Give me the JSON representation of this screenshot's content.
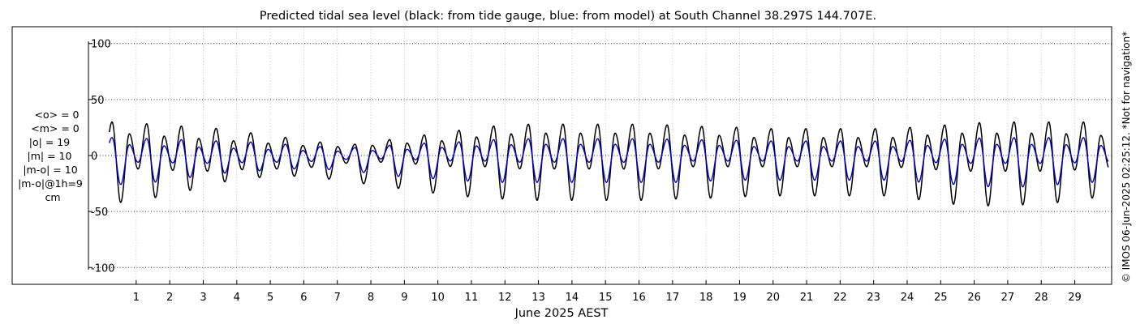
{
  "chart_data": {
    "type": "line",
    "title": "Predicted tidal sea level (black: from tide gauge, blue: from model) at South Channel 38.297S 144.707E.",
    "xlabel": "June 2025 AEST",
    "ylabel": "",
    "xlim": [
      -2.7,
      30.1
    ],
    "ylim": [
      -115,
      115
    ],
    "x_ticks": [
      1,
      2,
      3,
      4,
      5,
      6,
      7,
      8,
      9,
      10,
      11,
      12,
      13,
      14,
      15,
      16,
      17,
      18,
      19,
      20,
      21,
      22,
      23,
      24,
      25,
      26,
      27,
      28,
      29
    ],
    "y_ticks": [
      {
        "value": 100,
        "label": "100"
      },
      {
        "value": 50,
        "label": "50"
      },
      {
        "value": 0,
        "label": "0"
      },
      {
        "value": -50,
        "label": "-50"
      },
      {
        "value": -100,
        "label": "-100"
      }
    ],
    "grid": true,
    "data_start_x": 0.2,
    "data_end_x": 30.0,
    "series": [
      {
        "name": "from tide gauge",
        "color": "#000000",
        "daily_min": [
          -42,
          -38,
          -32,
          -24,
          -20,
          -18,
          -20,
          -24,
          -28,
          -32,
          -36,
          -38,
          -40,
          -40,
          -40,
          -40,
          -40,
          -38,
          -38,
          -36,
          -36,
          -36,
          -36,
          -36,
          -40,
          -44,
          -45,
          -44,
          -42,
          -38
        ],
        "daily_max": [
          30,
          28,
          26,
          24,
          20,
          16,
          12,
          10,
          14,
          18,
          22,
          26,
          28,
          28,
          28,
          28,
          28,
          26,
          26,
          24,
          24,
          24,
          24,
          24,
          26,
          28,
          30,
          30,
          30,
          30
        ],
        "daily_second_max": [
          20,
          18,
          16,
          14,
          12,
          10,
          8,
          8,
          10,
          12,
          14,
          18,
          20,
          20,
          20,
          20,
          20,
          18,
          18,
          16,
          16,
          16,
          16,
          16,
          18,
          20,
          20,
          20,
          20,
          18
        ],
        "daily_second_min": [
          -12,
          -12,
          -14,
          -14,
          -12,
          -12,
          -10,
          -6,
          -6,
          -8,
          -10,
          -10,
          -12,
          -12,
          -12,
          -12,
          -12,
          -10,
          -10,
          -10,
          -10,
          -10,
          -10,
          -10,
          -12,
          -14,
          -14,
          -14,
          -14,
          -12
        ]
      },
      {
        "name": "from model",
        "color": "#0000cc",
        "daily_min": [
          -26,
          -24,
          -20,
          -16,
          -14,
          -12,
          -12,
          -14,
          -18,
          -20,
          -22,
          -24,
          -24,
          -24,
          -24,
          -24,
          -24,
          -24,
          -22,
          -22,
          -22,
          -22,
          -22,
          -22,
          -24,
          -26,
          -28,
          -28,
          -26,
          -24
        ],
        "daily_max": [
          16,
          15,
          14,
          13,
          12,
          10,
          8,
          7,
          9,
          11,
          12,
          14,
          15,
          15,
          15,
          15,
          15,
          14,
          14,
          13,
          13,
          13,
          13,
          13,
          14,
          15,
          16,
          16,
          16,
          16
        ],
        "daily_second_max": [
          10,
          9,
          8,
          7,
          6,
          5,
          4,
          4,
          5,
          6,
          8,
          9,
          10,
          10,
          10,
          10,
          10,
          9,
          9,
          8,
          8,
          8,
          8,
          8,
          9,
          10,
          10,
          10,
          10,
          9
        ],
        "daily_second_min": [
          -6,
          -6,
          -7,
          -7,
          -6,
          -6,
          -5,
          -3,
          -3,
          -4,
          -5,
          -5,
          -6,
          -6,
          -6,
          -6,
          -6,
          -5,
          -5,
          -5,
          -5,
          -5,
          -5,
          -5,
          -6,
          -7,
          -7,
          -7,
          -7,
          -6
        ]
      }
    ],
    "annotations": [
      "<o> = 0",
      "<m> = 0",
      "|o| = 19",
      "|m| = 10",
      "|m-o| = 10",
      "|m-o|@1h=9",
      "cm"
    ],
    "credit": "© IMOS 06-Jun-2025 02:25:12. *Not for navigation*"
  }
}
